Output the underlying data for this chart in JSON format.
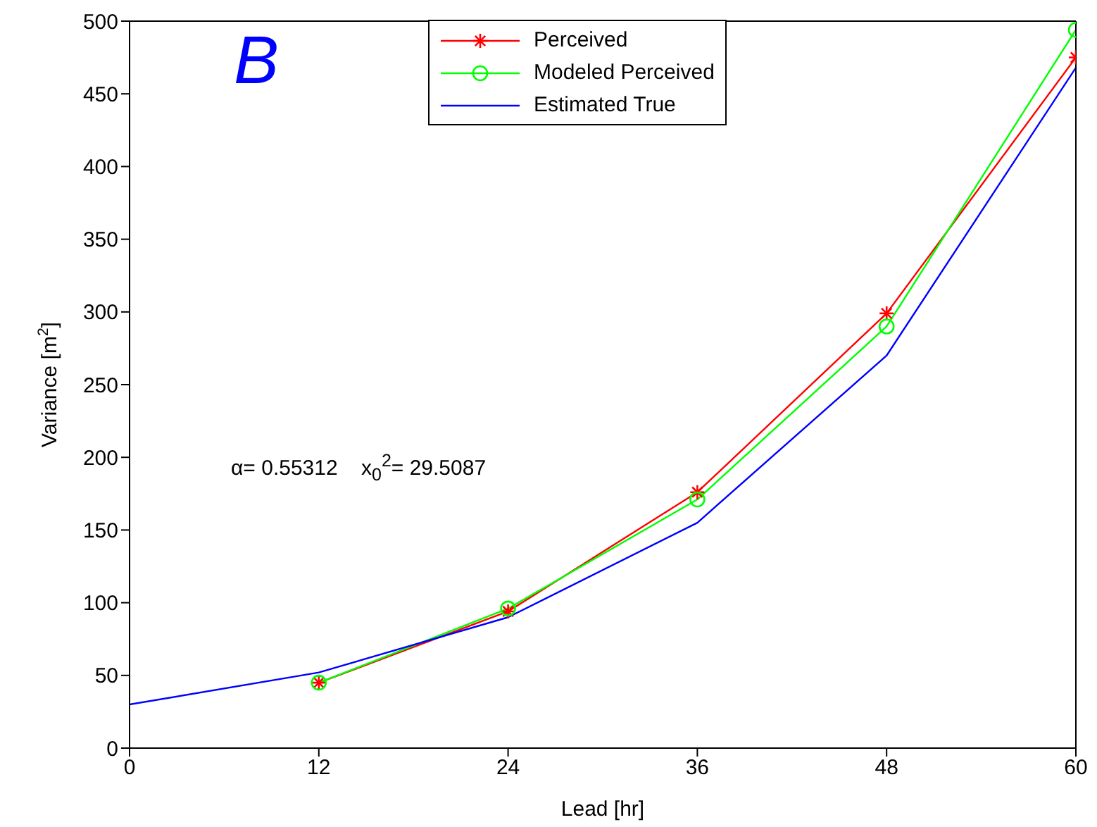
{
  "chart_data": {
    "type": "line",
    "xlabel": "Lead [hr]",
    "ylabel": "Variance [m$^{2}$]",
    "x": [
      0,
      12,
      24,
      36,
      48,
      60
    ],
    "xlim": [
      0,
      60
    ],
    "xticks": [
      0,
      12,
      24,
      36,
      48,
      60
    ],
    "ylim": [
      0,
      500
    ],
    "yticks": [
      0,
      50,
      100,
      150,
      200,
      250,
      300,
      350,
      400,
      450,
      500
    ],
    "legend": "top",
    "grid": false,
    "line_style": "solid",
    "series": [
      {
        "name": "Perceived",
        "color": "#ff0000",
        "marker": "cross",
        "values": [
          null,
          45,
          94,
          176,
          299,
          475
        ]
      },
      {
        "name": "Modeled Perceived",
        "color": "#00ff00",
        "marker": "circle",
        "values": [
          null,
          45,
          96,
          171,
          290,
          494
        ]
      },
      {
        "name": "Estimated True",
        "color": "#0000ff",
        "marker": "none",
        "values": [
          30,
          52,
          90,
          155,
          270,
          468
        ]
      }
    ],
    "annotations": [
      "B",
      "α= 0.55312    x$_{0}$$^{2}$= 29.5087"
    ]
  }
}
